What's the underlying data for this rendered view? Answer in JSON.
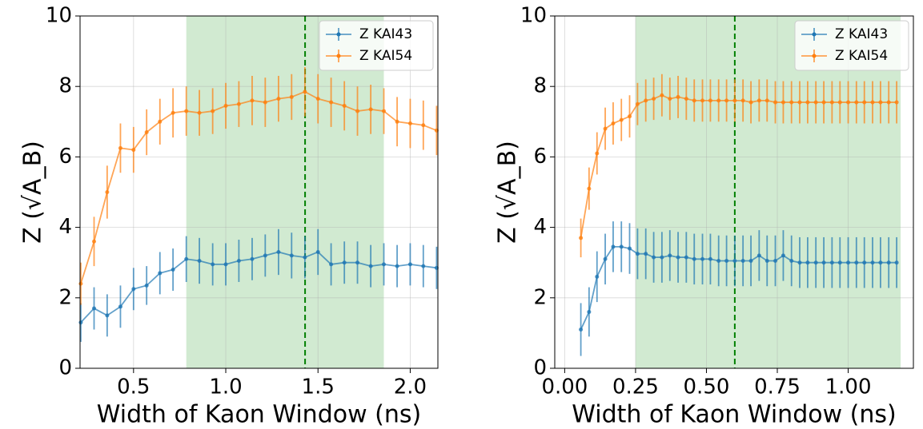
{
  "chart_data": [
    {
      "type": "errorbar-line",
      "xlabel": "Width of Kaon Window (ns)",
      "ylabel": "Z (√A_B)",
      "xlim": [
        0.21,
        2.15
      ],
      "ylim": [
        0,
        10
      ],
      "xticks": [
        0.5,
        {
          "value": 1,
          "label": "1.0"
        },
        1.5,
        {
          "value": 2,
          "label": "2.0"
        }
      ],
      "yticks": [
        0,
        2,
        4,
        6,
        8,
        10
      ],
      "grid": true,
      "legend": "upper right",
      "span": [
        0.786,
        1.857
      ],
      "span_color": "#2ca02c",
      "vline": 1.43,
      "vline_color": "#008000",
      "x": [
        0.214,
        0.286,
        0.357,
        0.429,
        0.5,
        0.571,
        0.643,
        0.714,
        0.786,
        0.857,
        0.929,
        1.0,
        1.071,
        1.143,
        1.214,
        1.286,
        1.357,
        1.429,
        1.5,
        1.571,
        1.643,
        1.714,
        1.786,
        1.857,
        1.929,
        2.0,
        2.071,
        2.143
      ],
      "series": [
        {
          "name": "Z KAI43",
          "color": "#1f77b4",
          "values": [
            1.3,
            1.7,
            1.5,
            1.75,
            2.25,
            2.35,
            2.7,
            2.8,
            3.1,
            3.05,
            2.95,
            2.95,
            3.05,
            3.1,
            3.2,
            3.3,
            3.2,
            3.15,
            3.3,
            2.95,
            3.0,
            3.0,
            2.9,
            2.95,
            2.9,
            2.95,
            2.9,
            2.85
          ],
          "errors": [
            0.55,
            0.6,
            0.6,
            0.6,
            0.6,
            0.55,
            0.6,
            0.6,
            0.65,
            0.65,
            0.6,
            0.6,
            0.6,
            0.6,
            0.6,
            0.65,
            0.65,
            0.6,
            0.65,
            0.6,
            0.6,
            0.6,
            0.6,
            0.6,
            0.6,
            0.6,
            0.6,
            0.6
          ]
        },
        {
          "name": "Z KAI54",
          "color": "#ff7f0e",
          "values": [
            2.4,
            3.6,
            5.0,
            6.25,
            6.2,
            6.7,
            7.0,
            7.25,
            7.3,
            7.25,
            7.3,
            7.45,
            7.5,
            7.6,
            7.55,
            7.65,
            7.7,
            7.85,
            7.65,
            7.55,
            7.45,
            7.3,
            7.35,
            7.3,
            7.0,
            6.95,
            6.9,
            6.75
          ],
          "errors": [
            0.6,
            0.7,
            0.75,
            0.7,
            0.65,
            0.65,
            0.65,
            0.7,
            0.7,
            0.65,
            0.65,
            0.65,
            0.65,
            0.7,
            0.7,
            0.65,
            0.65,
            0.7,
            0.7,
            0.7,
            0.7,
            0.7,
            0.7,
            0.65,
            0.7,
            0.7,
            0.7,
            0.7
          ]
        }
      ]
    },
    {
      "type": "errorbar-line",
      "xlabel": "Width of Kaon Window (ns)",
      "ylabel": "Z (√A_B)",
      "xlim": [
        -0.035,
        1.23
      ],
      "ylim": [
        0,
        10
      ],
      "xticks": [
        {
          "value": 0,
          "label": "0.00"
        },
        {
          "value": 0.25,
          "label": "0.25"
        },
        {
          "value": 0.5,
          "label": "0.50"
        },
        {
          "value": 0.75,
          "label": "0.75"
        },
        {
          "value": 1,
          "label": "1.00"
        }
      ],
      "yticks": [
        0,
        2,
        4,
        6,
        8,
        10
      ],
      "grid": true,
      "legend": "upper right",
      "span": [
        0.25,
        1.185
      ],
      "span_color": "#2ca02c",
      "vline": 0.6,
      "vline_color": "#008000",
      "x": [
        0.057,
        0.086,
        0.114,
        0.143,
        0.171,
        0.2,
        0.229,
        0.257,
        0.286,
        0.314,
        0.343,
        0.371,
        0.4,
        0.429,
        0.457,
        0.486,
        0.514,
        0.543,
        0.571,
        0.6,
        0.629,
        0.657,
        0.686,
        0.714,
        0.743,
        0.771,
        0.8,
        0.829,
        0.857,
        0.886,
        0.914,
        0.943,
        0.971,
        1.0,
        1.029,
        1.057,
        1.086,
        1.114,
        1.143,
        1.171
      ],
      "series": [
        {
          "name": "Z KAI43",
          "color": "#1f77b4",
          "values": [
            1.1,
            1.6,
            2.6,
            3.1,
            3.45,
            3.45,
            3.4,
            3.25,
            3.25,
            3.15,
            3.15,
            3.2,
            3.15,
            3.15,
            3.1,
            3.1,
            3.1,
            3.05,
            3.05,
            3.05,
            3.05,
            3.05,
            3.2,
            3.05,
            3.05,
            3.2,
            3.05,
            3.0,
            3.0,
            3.0,
            3.0,
            3.0,
            3.0,
            3.0,
            3.0,
            3.0,
            3.0,
            3.0,
            3.0,
            3.0
          ],
          "errors": [
            0.75,
            0.7,
            0.72,
            0.72,
            0.72,
            0.72,
            0.72,
            0.72,
            0.72,
            0.72,
            0.72,
            0.72,
            0.72,
            0.72,
            0.72,
            0.72,
            0.72,
            0.72,
            0.72,
            0.72,
            0.72,
            0.72,
            0.72,
            0.72,
            0.72,
            0.72,
            0.72,
            0.72,
            0.72,
            0.72,
            0.72,
            0.72,
            0.72,
            0.72,
            0.72,
            0.72,
            0.72,
            0.72,
            0.72,
            0.72
          ]
        },
        {
          "name": "Z KAI54",
          "color": "#ff7f0e",
          "values": [
            3.7,
            5.1,
            6.1,
            6.8,
            6.95,
            7.05,
            7.15,
            7.5,
            7.6,
            7.65,
            7.75,
            7.65,
            7.7,
            7.65,
            7.6,
            7.6,
            7.6,
            7.6,
            7.6,
            7.6,
            7.6,
            7.55,
            7.6,
            7.6,
            7.55,
            7.55,
            7.55,
            7.55,
            7.55,
            7.55,
            7.55,
            7.55,
            7.55,
            7.55,
            7.55,
            7.55,
            7.55,
            7.55,
            7.55,
            7.55
          ],
          "errors": [
            0.55,
            0.6,
            0.6,
            0.6,
            0.6,
            0.6,
            0.6,
            0.6,
            0.6,
            0.6,
            0.6,
            0.6,
            0.6,
            0.6,
            0.6,
            0.6,
            0.6,
            0.6,
            0.6,
            0.6,
            0.6,
            0.6,
            0.6,
            0.6,
            0.6,
            0.6,
            0.6,
            0.6,
            0.6,
            0.6,
            0.6,
            0.6,
            0.6,
            0.6,
            0.6,
            0.6,
            0.6,
            0.6,
            0.6,
            0.6
          ]
        }
      ]
    }
  ]
}
